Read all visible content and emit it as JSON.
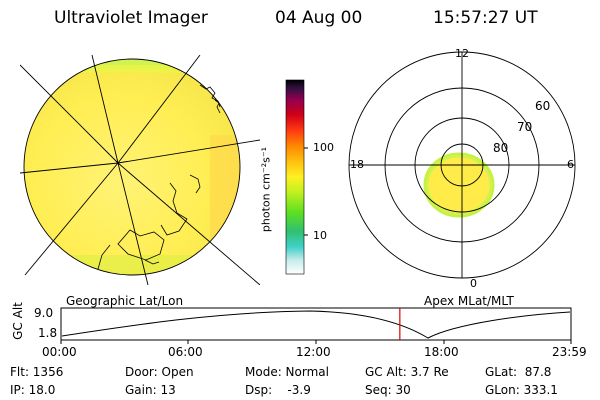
{
  "header": {
    "instrument": "Ultraviolet Imager",
    "date": "04 Aug 00",
    "time": "15:57:27 UT"
  },
  "colorbar": {
    "unit_label": "photon cm⁻²s⁻¹",
    "tick_100": "100",
    "tick_10": "10",
    "colors": [
      "#ffffff",
      "#b0e8e8",
      "#40d0c8",
      "#30c070",
      "#60e020",
      "#c0f020",
      "#fff020",
      "#ffc010",
      "#ff8800",
      "#ff3a10",
      "#d00018",
      "#900050",
      "#301040",
      "#000000"
    ]
  },
  "polar_plot": {
    "label_12": "12",
    "label_18": "18",
    "label_6": "6",
    "label_0": "0",
    "ring_60": "60",
    "ring_70": "70",
    "ring_80": "80"
  },
  "timeline": {
    "left_label": "Geographic Lat/Lon",
    "right_label": "Apex MLat/MLT",
    "y_axis": "GC Alt",
    "y_top": "9.0",
    "y_bottom": "1.8",
    "x_ticks": [
      "00:00",
      "06:00",
      "12:00",
      "18:00",
      "23:59"
    ],
    "current_time_fraction": 0.6644
  },
  "status": {
    "flt": "Flt: 1356",
    "ip": "IP: 18.0",
    "door": "Door: Open",
    "gain": "Gain: 13",
    "mode": "Mode: Normal",
    "dsp": "Dsp:    -3.9",
    "gc_alt": "GC Alt: 3.7 Re",
    "seq": "Seq: 30",
    "glat": "GLat:  87.8",
    "glon": "GLon: 333.1"
  }
}
